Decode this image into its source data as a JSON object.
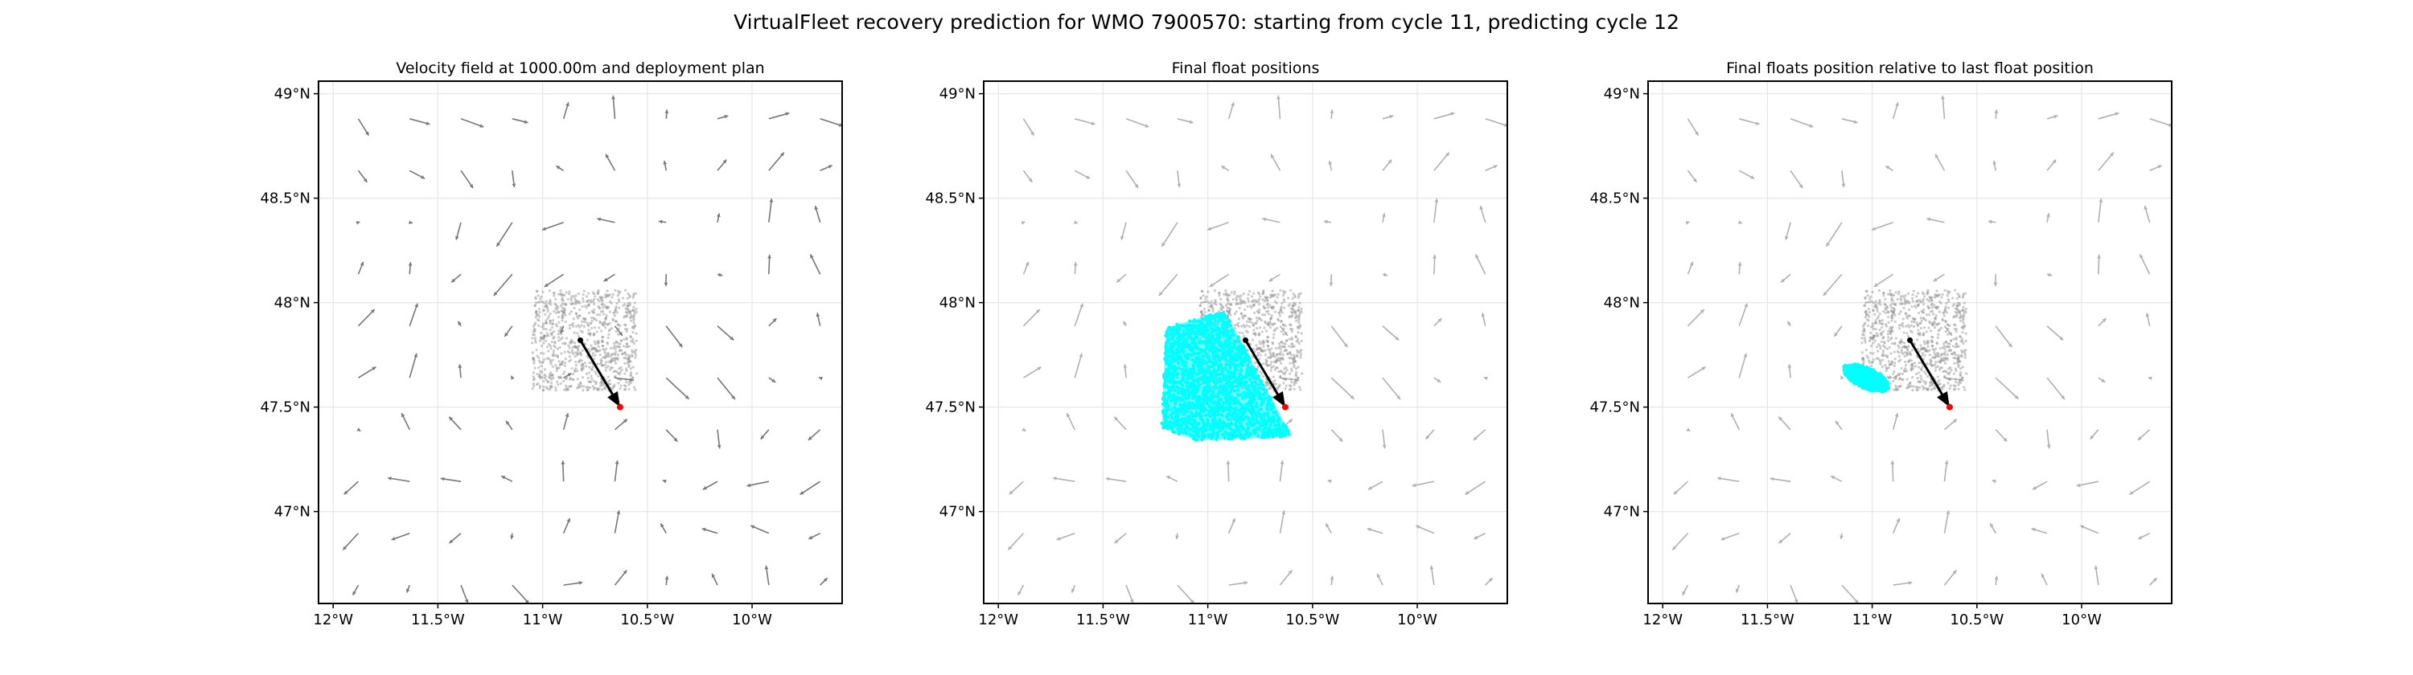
{
  "figure": {
    "suptitle": "VirtualFleet recovery prediction for WMO 7900570: starting from cycle 11, predicting cycle 12"
  },
  "colors": {
    "arrow": "#777777",
    "arrow_faded": "#b0b0b0",
    "cloud": "#8c8c8c",
    "prediction": "#00ffff",
    "track": "#000000",
    "target": "#ff0000",
    "grid": "#e6e6e6",
    "frame": "#000000"
  },
  "chart_data": [
    {
      "type": "scatter",
      "title": "Velocity field at 1000.00m and deployment plan",
      "xlim": [
        -12.07,
        -9.57
      ],
      "ylim": [
        46.56,
        49.06
      ],
      "xticks": [
        -12,
        -11.5,
        -11,
        -10.5,
        -10
      ],
      "xtick_labels": [
        "12°W",
        "11.5°W",
        "11°W",
        "10.5°W",
        "10°W"
      ],
      "yticks": [
        47,
        47.5,
        48,
        48.5,
        49
      ],
      "ytick_labels": [
        "47°N",
        "47.5°N",
        "48°N",
        "48.5°N",
        "49°N"
      ],
      "grid": true,
      "velocity_field": true,
      "deployment_cloud": {
        "lon_range": [
          -11.05,
          -10.55
        ],
        "lat_range": [
          47.58,
          48.06
        ]
      },
      "track": {
        "from": [
          -10.82,
          47.82
        ],
        "to": [
          -10.63,
          47.5
        ]
      },
      "target": [
        -10.63,
        47.5
      ]
    },
    {
      "type": "scatter",
      "title": "Final float positions",
      "xlim": [
        -12.07,
        -9.57
      ],
      "ylim": [
        46.56,
        49.06
      ],
      "xticks": [
        -12,
        -11.5,
        -11,
        -10.5,
        -10
      ],
      "xtick_labels": [
        "12°W",
        "11.5°W",
        "11°W",
        "10.5°W",
        "10°W"
      ],
      "yticks": [
        47,
        47.5,
        48,
        48.5,
        49
      ],
      "ytick_labels": [
        "47°N",
        "47.5°N",
        "48°N",
        "48.5°N",
        "49°N"
      ],
      "grid": true,
      "velocity_field": true,
      "deployment_cloud": {
        "lon_range": [
          -11.05,
          -10.55
        ],
        "lat_range": [
          47.58,
          48.06
        ]
      },
      "final_positions": {
        "polygon": [
          [
            -11.2,
            47.88
          ],
          [
            -10.92,
            47.96
          ],
          [
            -10.6,
            47.36
          ],
          [
            -11.05,
            47.34
          ],
          [
            -11.22,
            47.4
          ]
        ]
      },
      "track": {
        "from": [
          -10.82,
          47.82
        ],
        "to": [
          -10.63,
          47.5
        ]
      },
      "target": [
        -10.63,
        47.5
      ]
    },
    {
      "type": "scatter",
      "title": "Final floats position relative to last float position",
      "xlim": [
        -12.07,
        -9.57
      ],
      "ylim": [
        46.56,
        49.06
      ],
      "xticks": [
        -12,
        -11.5,
        -11,
        -10.5,
        -10
      ],
      "xtick_labels": [
        "12°W",
        "11.5°W",
        "11°W",
        "10.5°W",
        "10°W"
      ],
      "yticks": [
        47,
        47.5,
        48,
        48.5,
        49
      ],
      "ytick_labels": [
        "47°N",
        "47.5°N",
        "48°N",
        "48.5°N",
        "49°N"
      ],
      "grid": true,
      "velocity_field": true,
      "deployment_cloud": {
        "lon_range": [
          -11.05,
          -10.55
        ],
        "lat_range": [
          47.58,
          48.06
        ]
      },
      "relative_positions": {
        "center": [
          -11.03,
          47.64
        ],
        "radii": [
          0.12,
          0.05
        ],
        "angle_deg": -25
      },
      "track": {
        "from": [
          -10.82,
          47.82
        ],
        "to": [
          -10.63,
          47.5
        ]
      },
      "target": [
        -10.63,
        47.5
      ]
    }
  ]
}
